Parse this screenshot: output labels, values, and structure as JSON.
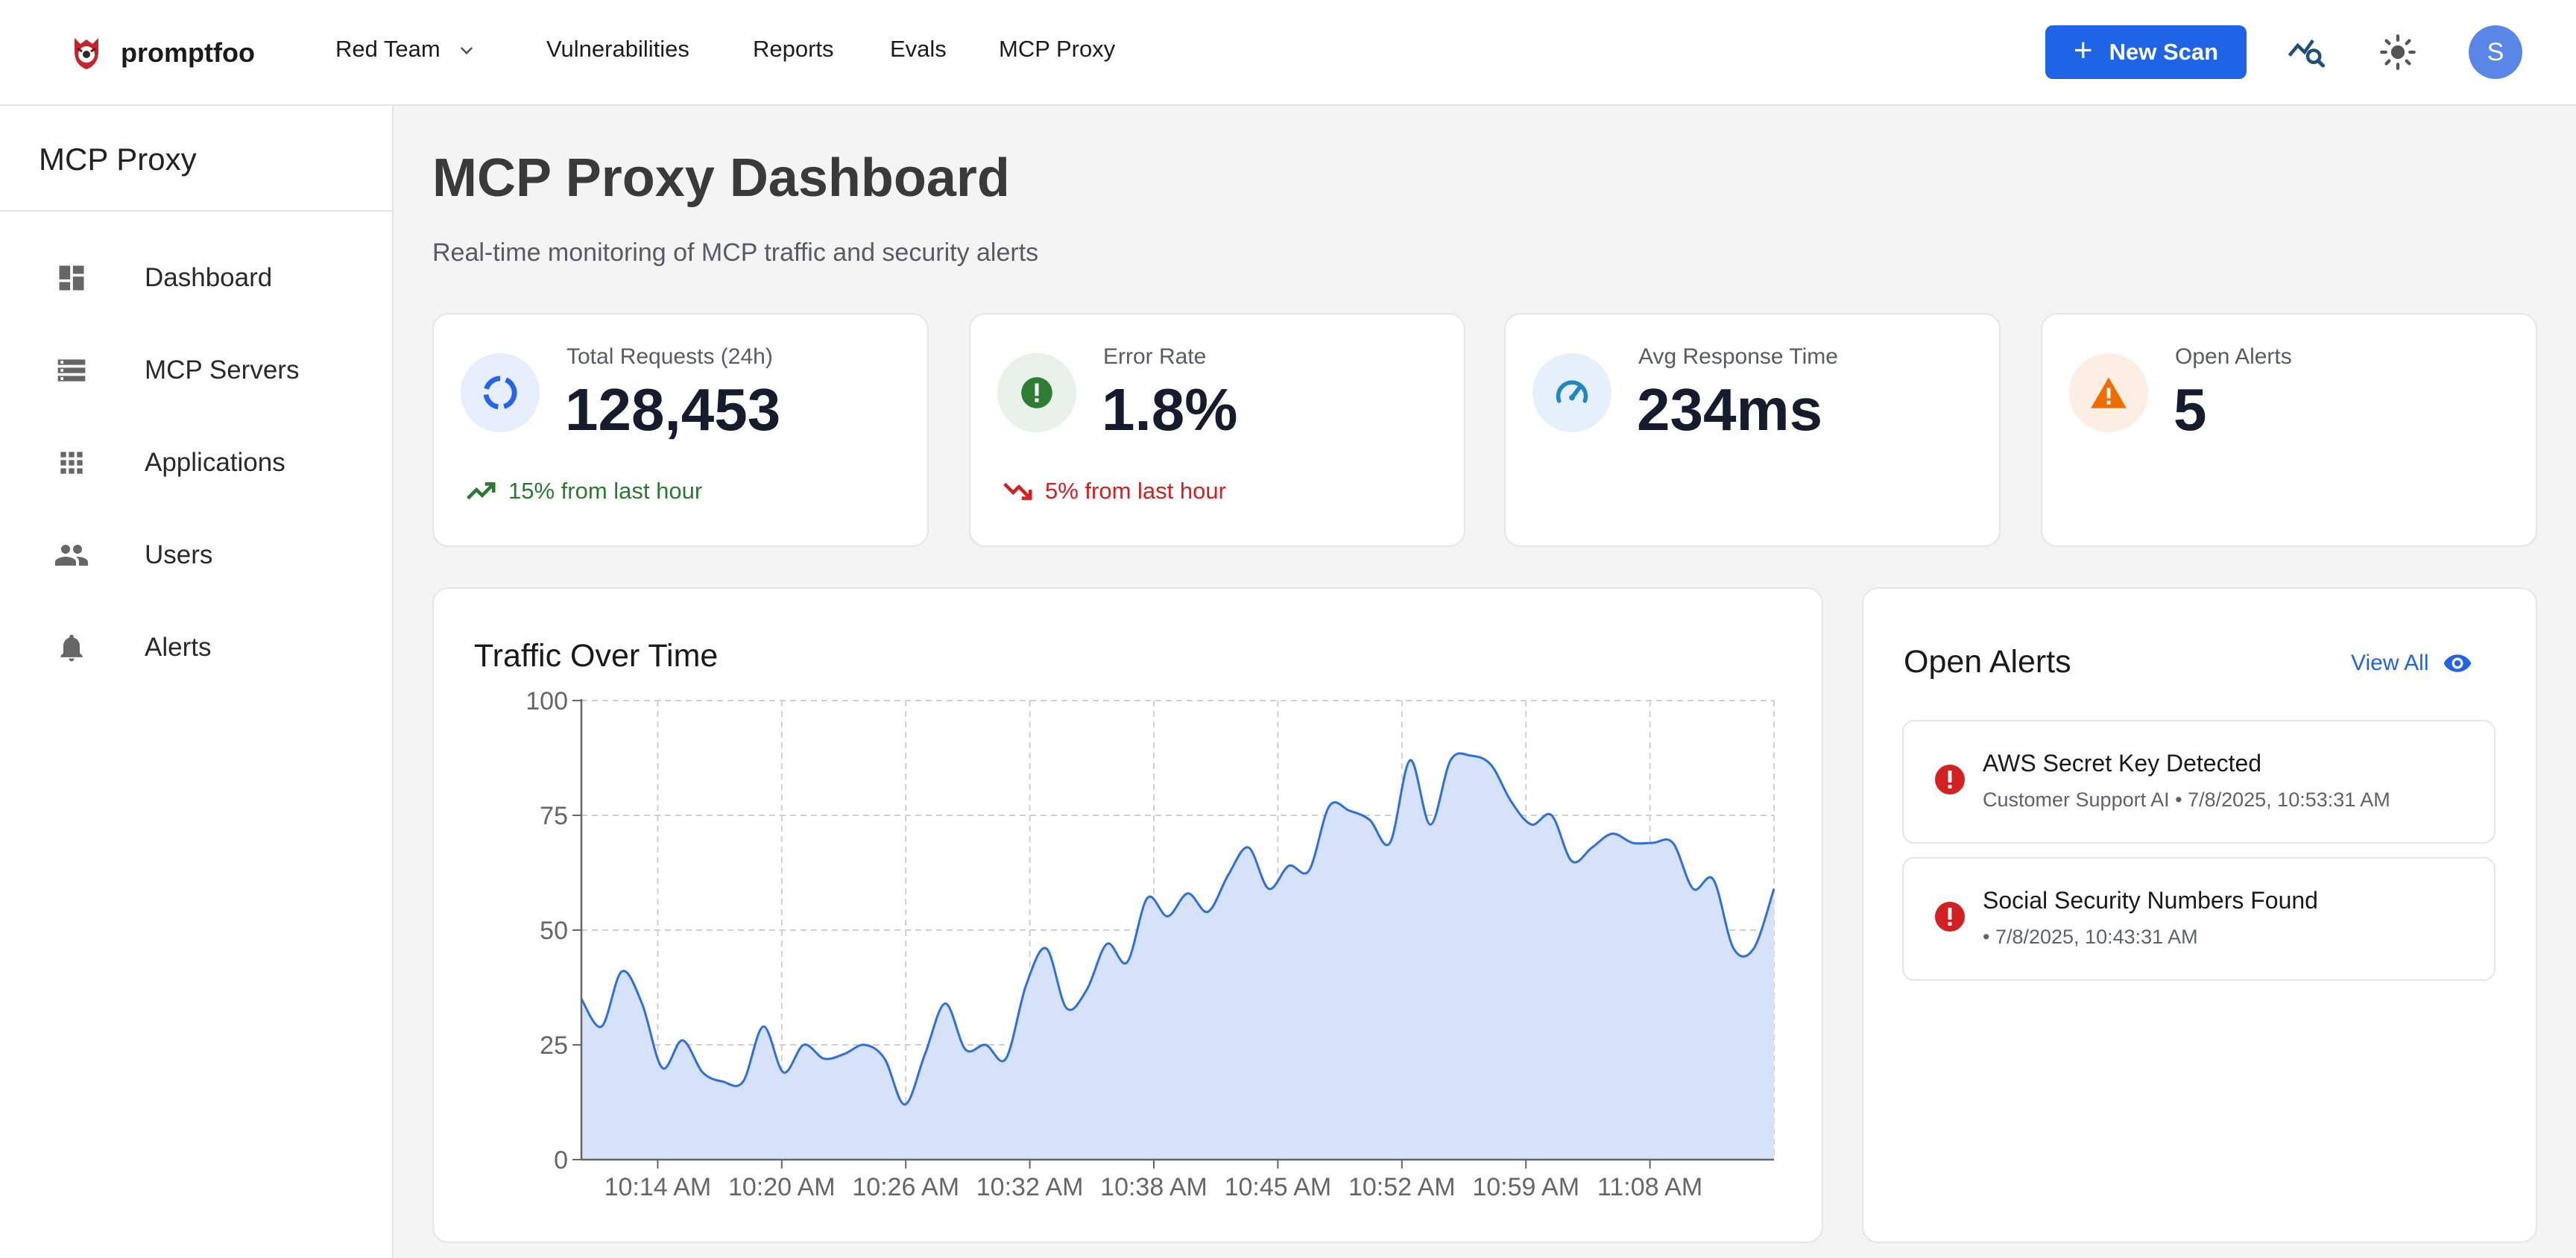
{
  "brand": {
    "name": "promptfoo"
  },
  "nav": {
    "items": [
      "Red Team",
      "Vulnerabilities",
      "Reports",
      "Evals",
      "MCP Proxy"
    ],
    "new_scan_label": "New Scan",
    "avatar_initial": "S"
  },
  "sidebar": {
    "title": "MCP Proxy",
    "items": [
      {
        "label": "Dashboard",
        "icon": "dashboard-icon"
      },
      {
        "label": "MCP Servers",
        "icon": "server-icon"
      },
      {
        "label": "Applications",
        "icon": "apps-grid-icon"
      },
      {
        "label": "Users",
        "icon": "users-icon"
      },
      {
        "label": "Alerts",
        "icon": "bell-icon"
      }
    ]
  },
  "page": {
    "title": "MCP Proxy Dashboard",
    "subtitle": "Real-time monitoring of MCP traffic and security alerts"
  },
  "stats": [
    {
      "label": "Total Requests (24h)",
      "value": "128,453",
      "trend": "15% from last hour",
      "trend_dir": "up",
      "icon": "loading-ring-icon",
      "color": "#2563eb"
    },
    {
      "label": "Error Rate",
      "value": "1.8%",
      "trend": "5% from last hour",
      "trend_dir": "down",
      "icon": "error-circle-icon",
      "color": "#2e7d32"
    },
    {
      "label": "Avg Response Time",
      "value": "234ms",
      "trend": "",
      "trend_dir": "",
      "icon": "speedometer-icon",
      "color": "#1e88c7"
    },
    {
      "label": "Open Alerts",
      "value": "5",
      "trend": "",
      "trend_dir": "",
      "icon": "warning-icon",
      "color": "#ef6c00"
    }
  ],
  "chart_data": {
    "type": "area",
    "title": "Traffic Over Time",
    "xlabel": "",
    "ylabel": "",
    "ylim": [
      0,
      100
    ],
    "yticks": [
      0,
      25,
      50,
      75,
      100
    ],
    "xticks": [
      "10:14 AM",
      "10:20 AM",
      "10:26 AM",
      "10:32 AM",
      "10:38 AM",
      "10:45 AM",
      "10:52 AM",
      "10:59 AM",
      "11:08 AM"
    ],
    "grid": true,
    "legend": "none",
    "color": "#2f6fdc",
    "fill": "#d6e1fa",
    "values": [
      35,
      29,
      41,
      34,
      20,
      26,
      19,
      17,
      17,
      29,
      19,
      25,
      22,
      23,
      25,
      22,
      12,
      23,
      34,
      24,
      25,
      22,
      38,
      46,
      33,
      37,
      47,
      43,
      57,
      53,
      58,
      54,
      62,
      68,
      59,
      64,
      63,
      77,
      76,
      74,
      69,
      87,
      73,
      87,
      88,
      86,
      78,
      73,
      75,
      65,
      68,
      71,
      69,
      69,
      69,
      59,
      61,
      46,
      46,
      59
    ]
  },
  "alerts": {
    "title": "Open Alerts",
    "view_all": "View All",
    "items": [
      {
        "title": "AWS Secret Key Detected",
        "meta": "Customer Support AI • 7/8/2025, 10:53:31 AM"
      },
      {
        "title": "Social Security Numbers Found",
        "meta": "• 7/8/2025, 10:43:31 AM"
      }
    ]
  }
}
